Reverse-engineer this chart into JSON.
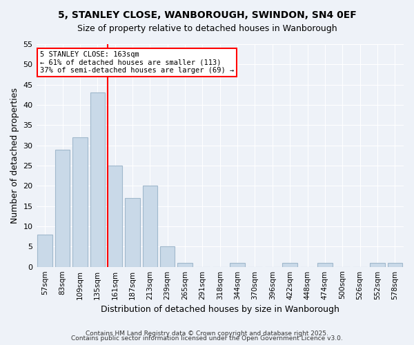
{
  "title1": "5, STANLEY CLOSE, WANBOROUGH, SWINDON, SN4 0EF",
  "title2": "Size of property relative to detached houses in Wanborough",
  "xlabel": "Distribution of detached houses by size in Wanborough",
  "ylabel": "Number of detached properties",
  "categories": [
    "57sqm",
    "83sqm",
    "109sqm",
    "135sqm",
    "161sqm",
    "187sqm",
    "213sqm",
    "239sqm",
    "265sqm",
    "291sqm",
    "318sqm",
    "344sqm",
    "370sqm",
    "396sqm",
    "422sqm",
    "448sqm",
    "474sqm",
    "500sqm",
    "526sqm",
    "552sqm",
    "578sqm"
  ],
  "values": [
    8,
    29,
    32,
    43,
    25,
    17,
    20,
    5,
    1,
    0,
    0,
    1,
    0,
    0,
    1,
    0,
    1,
    0,
    0,
    1,
    1
  ],
  "bar_color": "#c9d9e8",
  "bar_edge_color": "#a0b8cc",
  "red_line_index": 4,
  "red_line_label": "5 STANLEY CLOSE: 163sqm",
  "annotation_line1": "5 STANLEY CLOSE: 163sqm",
  "annotation_line2": "← 61% of detached houses are smaller (113)",
  "annotation_line3": "37% of semi-detached houses are larger (69) →",
  "annotation_box_color": "white",
  "annotation_box_edge_color": "red",
  "ylim": [
    0,
    55
  ],
  "yticks": [
    0,
    5,
    10,
    15,
    20,
    25,
    30,
    35,
    40,
    45,
    50,
    55
  ],
  "background_color": "#eef2f8",
  "grid_color": "white",
  "footer1": "Contains HM Land Registry data © Crown copyright and database right 2025.",
  "footer2": "Contains public sector information licensed under the Open Government Licence v3.0."
}
